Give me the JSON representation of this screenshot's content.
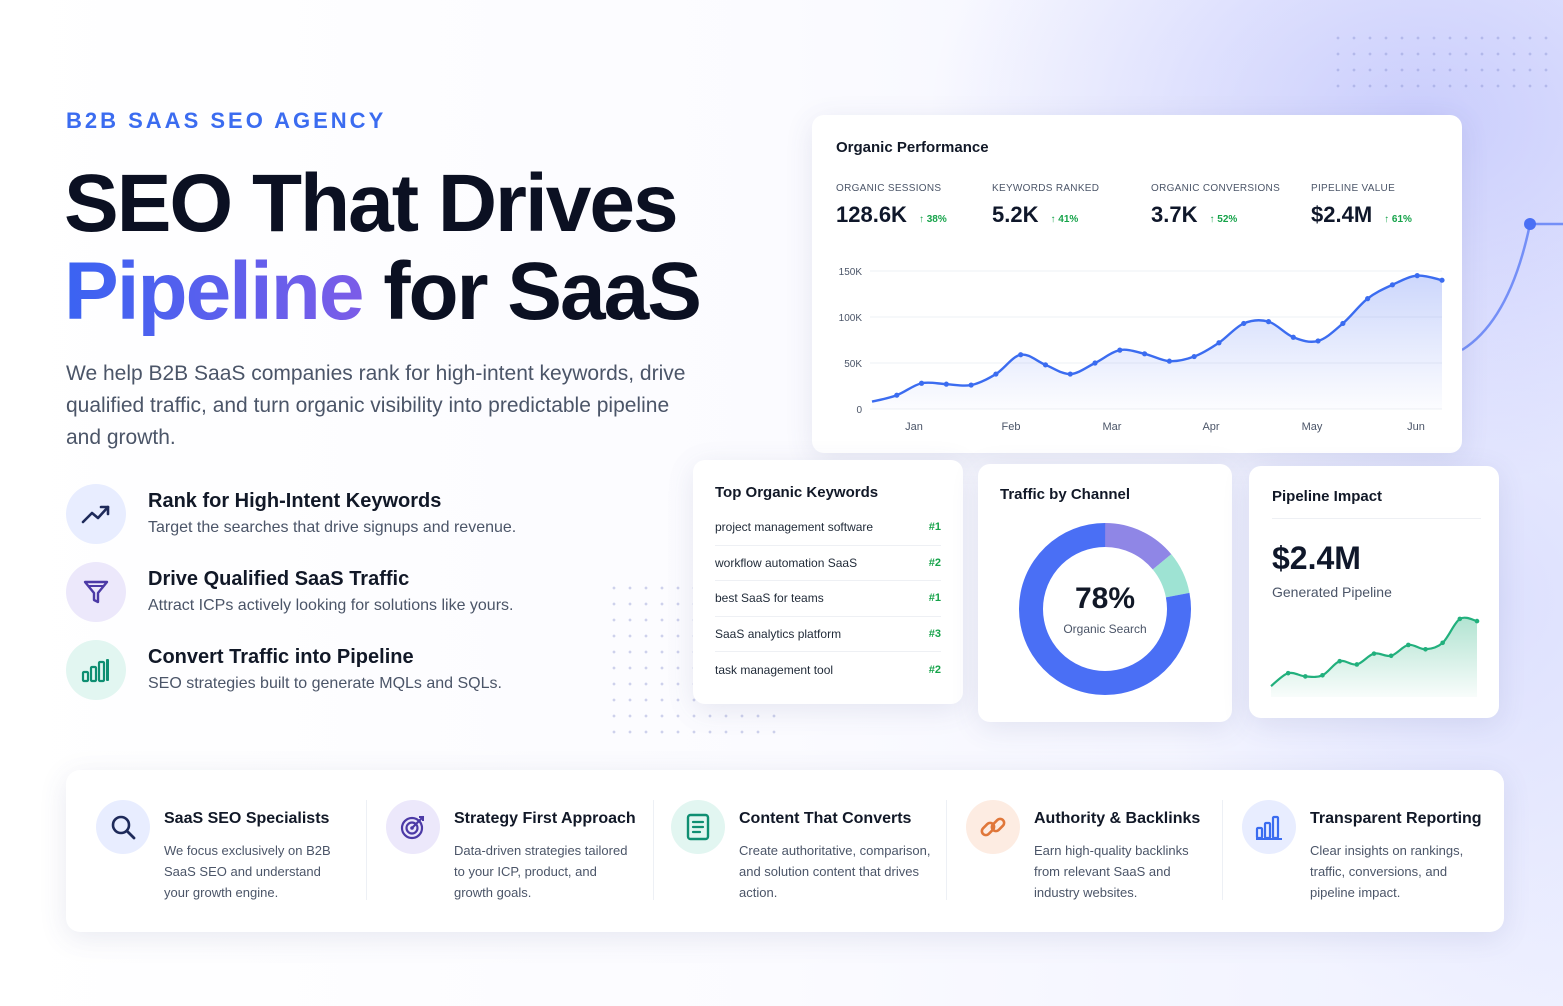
{
  "hero": {
    "eyebrow": "B2B SAAS SEO AGENCY",
    "headline_line1": "SEO That Drives",
    "headline_accent": "Pipeline",
    "headline_rest": " for SaaS",
    "lead": "We help B2B SaaS companies rank for high-intent keywords, drive qualified traffic, and turn organic visibility into predictable pipeline and growth."
  },
  "features": [
    {
      "icon": "trend-up-icon",
      "title": "Rank for High-Intent Keywords",
      "desc": "Target the searches that drive signups and revenue."
    },
    {
      "icon": "funnel-icon",
      "title": "Drive Qualified SaaS Traffic",
      "desc": "Attract ICPs actively looking for solutions like yours."
    },
    {
      "icon": "bar-chart-icon",
      "title": "Convert Traffic into Pipeline",
      "desc": "SEO strategies built to generate MQLs and SQLs."
    }
  ],
  "performance": {
    "title": "Organic Performance",
    "metrics": [
      {
        "label": "ORGANIC SESSIONS",
        "value": "128.6K",
        "change": "↑ 38%"
      },
      {
        "label": "KEYWORDS RANKED",
        "value": "5.2K",
        "change": "↑ 41%"
      },
      {
        "label": "ORGANIC CONVERSIONS",
        "value": "3.7K",
        "change": "↑ 52%"
      },
      {
        "label": "PIPELINE VALUE",
        "value": "$2.4M",
        "change": "↑ 61%"
      }
    ]
  },
  "chart_data": [
    {
      "type": "area",
      "title": "Organic Performance",
      "x_ticks": [
        "Jan",
        "Feb",
        "Mar",
        "Apr",
        "May",
        "Jun"
      ],
      "y_ticks": [
        "150K",
        "100K",
        "50K",
        "0"
      ],
      "ylim": [
        0,
        150000
      ],
      "grid": true,
      "points": [
        8000,
        15000,
        28000,
        27000,
        26000,
        38000,
        59000,
        48000,
        38000,
        50000,
        64000,
        60000,
        52000,
        57000,
        72000,
        93000,
        95000,
        78000,
        74000,
        93000,
        120000,
        135000,
        145000,
        140000
      ],
      "color": "#3b6cf0"
    },
    {
      "type": "pie",
      "title": "Traffic by Channel",
      "center_value": "78%",
      "center_label": "Organic Search",
      "slices": [
        {
          "value": 78,
          "color": "#4a6ff5"
        },
        {
          "value": 8,
          "color": "#9ee3d3"
        },
        {
          "value": 14,
          "color": "#8f86e6"
        }
      ]
    },
    {
      "type": "area",
      "title": "Pipeline Impact",
      "points": [
        10,
        22,
        19,
        20,
        33,
        30,
        40,
        38,
        48,
        44,
        50,
        72,
        70
      ],
      "color": "#22b07d"
    }
  ],
  "keywords": {
    "title": "Top Organic Keywords",
    "rows": [
      {
        "keyword": "project management software",
        "rank": "#1"
      },
      {
        "keyword": "workflow automation SaaS",
        "rank": "#2"
      },
      {
        "keyword": "best SaaS for teams",
        "rank": "#1"
      },
      {
        "keyword": "SaaS analytics platform",
        "rank": "#3"
      },
      {
        "keyword": "task management tool",
        "rank": "#2"
      }
    ]
  },
  "traffic": {
    "title": "Traffic by Channel",
    "center_value": "78%",
    "center_label": "Organic Search"
  },
  "pipeline": {
    "title": "Pipeline Impact",
    "value": "$2.4M",
    "label": "Generated Pipeline"
  },
  "services": [
    {
      "icon": "search-icon",
      "title": "SaaS SEO Specialists",
      "desc": "We focus exclusively on B2B SaaS SEO and understand your growth engine."
    },
    {
      "icon": "target-icon",
      "title": "Strategy First Approach",
      "desc": "Data-driven strategies tailored to your ICP, product, and growth goals."
    },
    {
      "icon": "document-icon",
      "title": "Content That Converts",
      "desc": "Create authoritative, comparison, and solution content that drives action."
    },
    {
      "icon": "link-icon",
      "title": "Authority & Backlinks",
      "desc": "Earn high-quality backlinks from relevant SaaS and industry websites."
    },
    {
      "icon": "report-chart-icon",
      "title": "Transparent Reporting",
      "desc": "Clear insights on rankings, traffic, conversions, and pipeline impact."
    }
  ],
  "colors": {
    "accent": "#3b6cf0",
    "accent2": "#7b5ce8",
    "positive": "#16a34a",
    "green": "#22b07d"
  }
}
